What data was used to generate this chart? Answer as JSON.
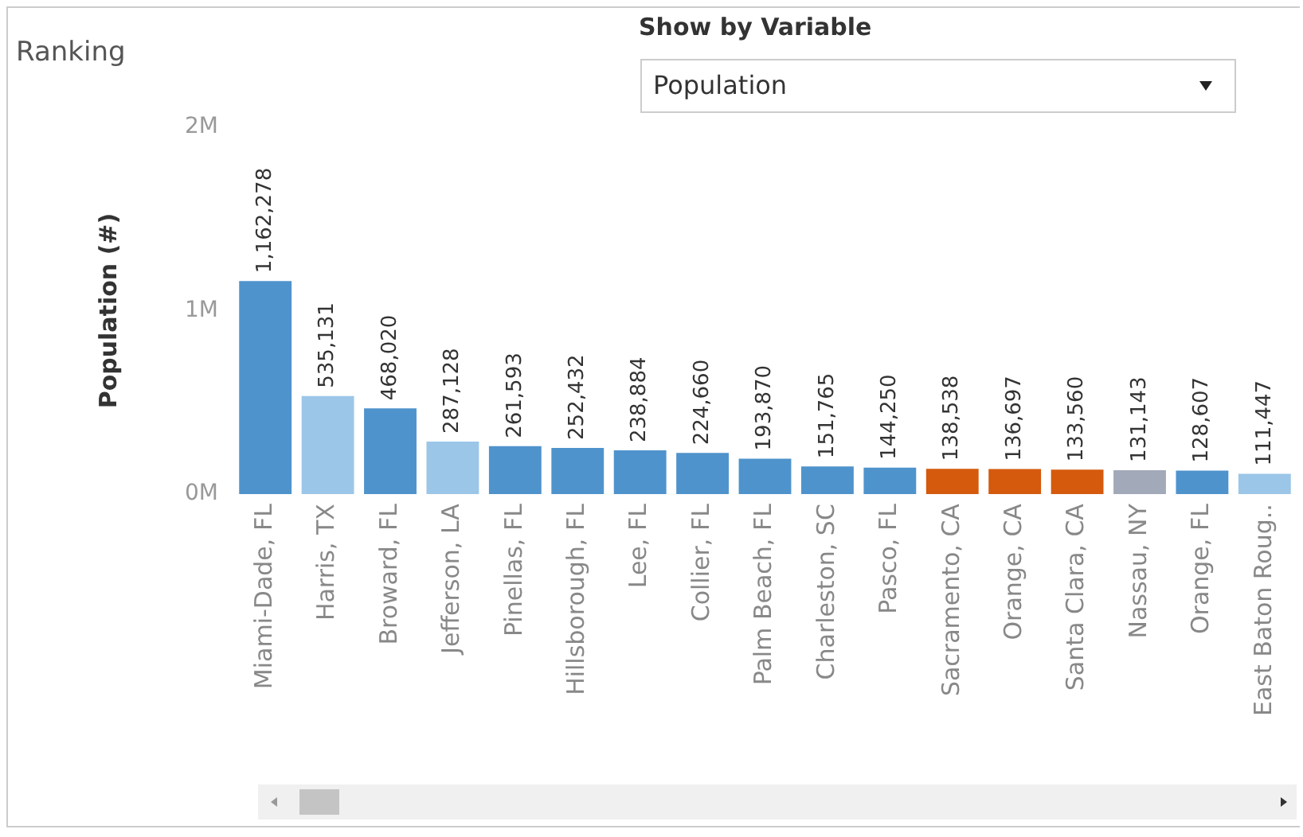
{
  "chart_data": {
    "type": "bar",
    "title": "Ranking",
    "ylabel": "Population (#)",
    "annotations": [
      "Show by Variable",
      "Population"
    ],
    "categories": [
      "Miami-Dade, FL",
      "Harris, TX",
      "Broward, FL",
      "Jefferson, LA",
      "Pinellas, FL",
      "Hillsborough, FL",
      "Lee, FL",
      "Collier, FL",
      "Palm Beach, FL",
      "Charleston, SC",
      "Pasco, FL",
      "Sacramento, CA",
      "Orange, CA",
      "Santa Clara, CA",
      "Nassau, NY",
      "Orange, FL",
      "East Baton Roug.."
    ],
    "values": [
      1162278,
      535131,
      468020,
      287128,
      261593,
      252432,
      238884,
      224660,
      193870,
      151765,
      144250,
      138538,
      136697,
      133560,
      131143,
      128607,
      111447
    ],
    "colors": [
      "#4f93cc",
      "#9cc6e8",
      "#4f93cc",
      "#9cc6e8",
      "#4f93cc",
      "#4f93cc",
      "#4f93cc",
      "#4f93cc",
      "#4f93cc",
      "#4f93cc",
      "#4f93cc",
      "#d55a0e",
      "#d55a0e",
      "#d55a0e",
      "#a2a9b8",
      "#4f93cc",
      "#9cc6e8"
    ],
    "ylim": [
      0,
      2000000
    ],
    "yticks": [
      {
        "value": 0,
        "label": "0M"
      },
      {
        "value": 1000000,
        "label": "1M"
      },
      {
        "value": 2000000,
        "label": "2M"
      }
    ],
    "value_labels": [
      "1,162,278",
      "535,131",
      "468,020",
      "287,128",
      "261,593",
      "252,432",
      "238,884",
      "224,660",
      "193,870",
      "151,765",
      "144,250",
      "138,538",
      "136,697",
      "133,560",
      "131,143",
      "128,607",
      "111,447"
    ],
    "grid": false,
    "legend": false
  }
}
